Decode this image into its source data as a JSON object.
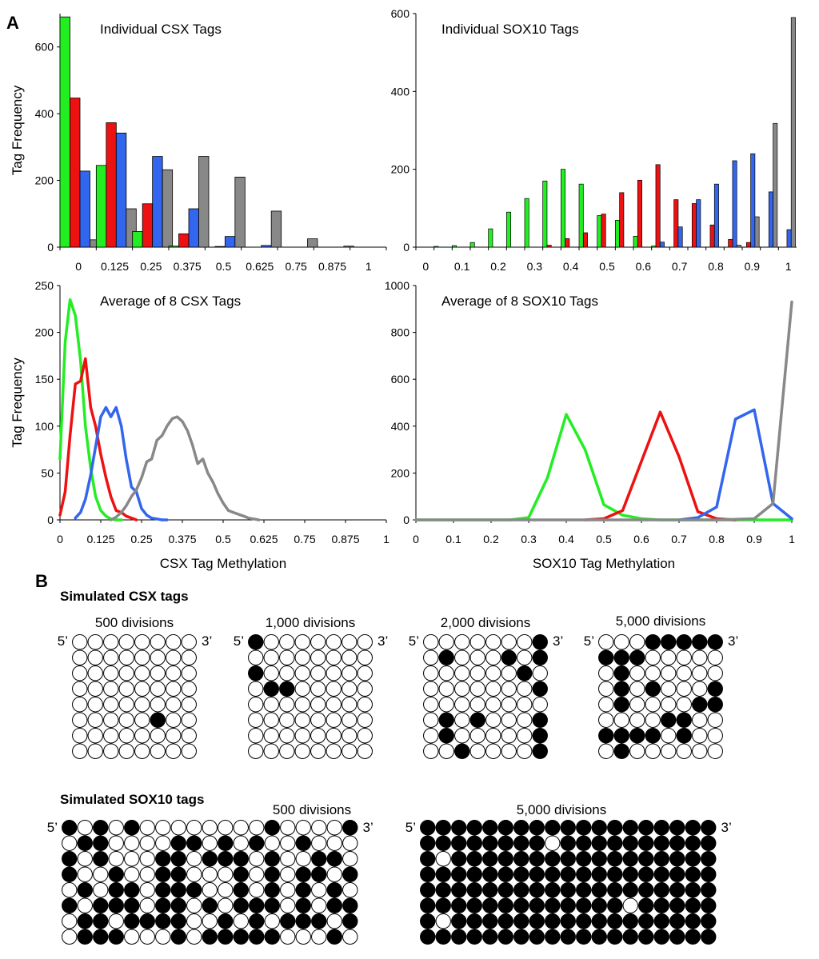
{
  "panel_labels": {
    "a": "A",
    "b": "B"
  },
  "colors": {
    "green": "#22ee22",
    "red": "#ee1111",
    "blue": "#3366ee",
    "gray": "#888888"
  },
  "chart_data": [
    {
      "type": "bar",
      "title": "Individual CSX Tags",
      "ylabel": "Tag Frequency",
      "xlabel": "",
      "ylim": [
        0,
        700
      ],
      "yticks": [
        "0",
        "200",
        "400",
        "600"
      ],
      "categories": [
        "0",
        "0.125",
        "0.25",
        "0.375",
        "0.5",
        "0.625",
        "0.75",
        "0.875",
        "1"
      ],
      "series": [
        {
          "color": "#22ee22",
          "values": [
            690,
            245,
            47,
            3,
            0,
            0,
            0,
            0,
            0
          ]
        },
        {
          "color": "#ee1111",
          "values": [
            447,
            373,
            130,
            40,
            2,
            0,
            0,
            0,
            0
          ]
        },
        {
          "color": "#3366ee",
          "values": [
            228,
            342,
            272,
            115,
            32,
            5,
            0,
            0,
            0
          ]
        },
        {
          "color": "#888888",
          "values": [
            22,
            115,
            232,
            272,
            210,
            108,
            25,
            3,
            0
          ]
        }
      ]
    },
    {
      "type": "bar",
      "title": "Individual SOX10 Tags",
      "ylabel": "",
      "xlabel": "",
      "ylim": [
        0,
        600
      ],
      "yticks": [
        "0",
        "200",
        "400",
        "600"
      ],
      "categories": [
        "0",
        "0.1",
        "0.2",
        "0.3",
        "0.4",
        "0.5",
        "0.6",
        "0.7",
        "0.8",
        "0.9",
        "1"
      ],
      "x": [
        0.0,
        0.05,
        0.1,
        0.15,
        0.2,
        0.25,
        0.3,
        0.35,
        0.4,
        0.45,
        0.5,
        0.55,
        0.6,
        0.65,
        0.7,
        0.75,
        0.8,
        0.85,
        0.9,
        0.95,
        1.0
      ],
      "series": [
        {
          "color": "#22ee22",
          "values": [
            0,
            2,
            4,
            12,
            47,
            90,
            125,
            170,
            200,
            162,
            81,
            69,
            28,
            3,
            0,
            0,
            0,
            0,
            0,
            0,
            0
          ]
        },
        {
          "color": "#ee1111",
          "values": [
            0,
            0,
            0,
            0,
            0,
            0,
            0,
            5,
            22,
            37,
            85,
            140,
            172,
            212,
            122,
            112,
            57,
            20,
            12,
            0,
            0
          ]
        },
        {
          "color": "#3366ee",
          "values": [
            0,
            0,
            0,
            0,
            0,
            0,
            0,
            0,
            0,
            0,
            0,
            0,
            0,
            13,
            52,
            122,
            162,
            222,
            240,
            142,
            45
          ]
        },
        {
          "color": "#888888",
          "values": [
            0,
            0,
            0,
            0,
            0,
            0,
            0,
            0,
            0,
            0,
            0,
            0,
            0,
            0,
            0,
            0,
            0,
            5,
            78,
            318,
            590
          ]
        }
      ]
    },
    {
      "type": "line",
      "title": "Average of 8 CSX Tags",
      "ylabel": "Tag Frequency",
      "xlabel": "CSX Tag Methylation",
      "xlim": [
        0,
        1
      ],
      "ylim": [
        0,
        250
      ],
      "xticks": [
        "0",
        "0.125",
        "0.25",
        "0.375",
        "0.5",
        "0.625",
        "0.75",
        "0.875",
        "1"
      ],
      "yticks": [
        "0",
        "50",
        "100",
        "150",
        "200",
        "250"
      ],
      "series": [
        {
          "color": "#22ee22",
          "x": [
            0,
            0.016,
            0.031,
            0.047,
            0.063,
            0.078,
            0.094,
            0.109,
            0.125,
            0.141,
            0.156,
            0.172,
            0.188
          ],
          "y": [
            65,
            190,
            235,
            218,
            170,
            100,
            55,
            25,
            10,
            4,
            1,
            0,
            0
          ]
        },
        {
          "color": "#ee1111",
          "x": [
            0,
            0.016,
            0.031,
            0.047,
            0.063,
            0.078,
            0.094,
            0.109,
            0.125,
            0.141,
            0.156,
            0.172,
            0.188,
            0.203,
            0.219,
            0.234
          ],
          "y": [
            5,
            30,
            90,
            145,
            148,
            172,
            120,
            100,
            70,
            45,
            25,
            10,
            8,
            4,
            2,
            0
          ]
        },
        {
          "color": "#3366ee",
          "x": [
            0.047,
            0.063,
            0.078,
            0.094,
            0.109,
            0.125,
            0.141,
            0.156,
            0.172,
            0.188,
            0.203,
            0.219,
            0.234,
            0.25,
            0.266,
            0.281,
            0.297,
            0.313,
            0.328
          ],
          "y": [
            2,
            8,
            22,
            48,
            78,
            110,
            120,
            110,
            120,
            100,
            65,
            35,
            30,
            12,
            5,
            2,
            1,
            0,
            0
          ]
        },
        {
          "color": "#888888",
          "x": [
            0.156,
            0.172,
            0.188,
            0.203,
            0.219,
            0.234,
            0.25,
            0.266,
            0.281,
            0.297,
            0.313,
            0.328,
            0.344,
            0.359,
            0.375,
            0.391,
            0.406,
            0.422,
            0.438,
            0.453,
            0.469,
            0.484,
            0.5,
            0.516,
            0.531,
            0.547,
            0.563,
            0.578,
            0.594,
            0.609
          ],
          "y": [
            0,
            3,
            8,
            15,
            25,
            32,
            45,
            62,
            65,
            85,
            90,
            100,
            108,
            110,
            105,
            95,
            80,
            60,
            65,
            50,
            40,
            28,
            18,
            10,
            8,
            6,
            4,
            2,
            1,
            0
          ]
        }
      ]
    },
    {
      "type": "line",
      "title": "Average of 8 SOX10 Tags",
      "ylabel": "",
      "xlabel": "SOX10 Tag Methylation",
      "xlim": [
        0,
        1
      ],
      "ylim": [
        0,
        1000
      ],
      "xticks": [
        "0",
        "0.1",
        "0.2",
        "0.3",
        "0.4",
        "0.5",
        "0.6",
        "0.7",
        "0.8",
        "0.9",
        "1"
      ],
      "yticks": [
        "0",
        "200",
        "400",
        "600",
        "800",
        "1000"
      ],
      "series": [
        {
          "color": "#22ee22",
          "x": [
            0,
            0.05,
            0.1,
            0.15,
            0.2,
            0.25,
            0.3,
            0.35,
            0.4,
            0.45,
            0.5,
            0.55,
            0.6,
            0.65,
            0.7,
            0.75,
            0.8,
            0.85,
            0.9,
            0.95,
            1
          ],
          "y": [
            0,
            0,
            0,
            0,
            0,
            0,
            10,
            180,
            450,
            300,
            65,
            20,
            5,
            0,
            0,
            0,
            0,
            0,
            0,
            0,
            0
          ]
        },
        {
          "color": "#ee1111",
          "x": [
            0.45,
            0.5,
            0.55,
            0.6,
            0.65,
            0.7,
            0.75,
            0.8,
            0.85
          ],
          "y": [
            0,
            5,
            40,
            250,
            460,
            270,
            35,
            5,
            0
          ]
        },
        {
          "color": "#3366ee",
          "x": [
            0.7,
            0.75,
            0.8,
            0.85,
            0.9,
            0.95,
            1.0
          ],
          "y": [
            0,
            10,
            55,
            430,
            470,
            70,
            5
          ]
        },
        {
          "color": "#888888",
          "x": [
            0,
            0.1,
            0.2,
            0.3,
            0.4,
            0.5,
            0.6,
            0.7,
            0.8,
            0.9,
            0.95,
            1.0
          ],
          "y": [
            0,
            0,
            0,
            0,
            0,
            0,
            0,
            0,
            0,
            5,
            70,
            930
          ]
        }
      ]
    }
  ],
  "simulated": {
    "csx_title": "Simulated CSX tags",
    "sox_title": "Simulated SOX10 tags",
    "five_prime": "5’",
    "three_prime": "3’",
    "csx_grids": [
      {
        "label": "500 divisions",
        "rows": [
          "00000000",
          "00000000",
          "00000000",
          "00000000",
          "00000000",
          "00000100",
          "00000000",
          "00000000"
        ]
      },
      {
        "label": "1,000 divisions",
        "rows": [
          "10000000",
          "00000000",
          "10000000",
          "01100000",
          "00000000",
          "00000000",
          "00000000",
          "00000000"
        ]
      },
      {
        "label": "2,000 divisions",
        "rows": [
          "00000001",
          "01000101",
          "00000010",
          "00000001",
          "00000000",
          "01010001",
          "01000001",
          "00100001"
        ]
      },
      {
        "label": "5,000 divisions",
        "rows": [
          "00011111",
          "11100000",
          "01000000",
          "01010001",
          "01000011",
          "00001100",
          "11110100",
          "01000000"
        ]
      }
    ],
    "sox_grids": [
      {
        "label": "500 divisions",
        "rows": [
          "1010100000000100001",
          "0110000110101001000",
          "1010001101110100110",
          "1001001100010101101",
          "0101101110010101010",
          "1011101101011101011",
          "0110111100101011101",
          "0111000101111100010"
        ]
      },
      {
        "label": "5,000 divisions",
        "rows": [
          "1111111111111111111",
          "1111111101111111111",
          "1011111111111111111",
          "1111111111111111111",
          "1111111111111111111",
          "1111111111111011111",
          "1011111111111111111",
          "1111111111111111111"
        ]
      }
    ]
  }
}
